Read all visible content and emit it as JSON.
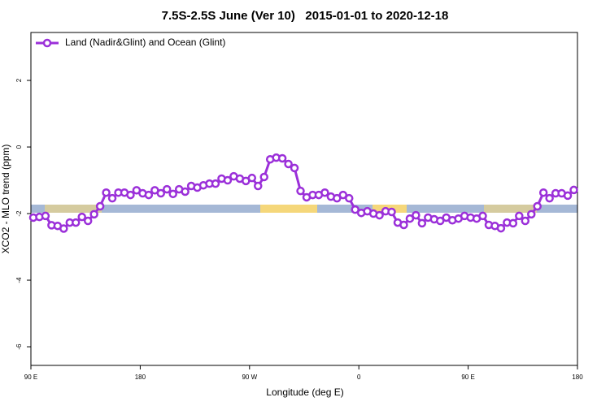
{
  "chart_data": {
    "type": "line",
    "title": "7.5S-2.5S June (Ver 10)   2015-01-01 to 2020-12-18",
    "xlabel": "Longitude (deg E)",
    "ylabel": "XCO2 - MLO trend (ppm)",
    "xlim": [
      90,
      540
    ],
    "ylim": [
      -6.56,
      3.44
    ],
    "xticks": [
      {
        "value": 90,
        "label": "90 E"
      },
      180,
      {
        "value": 270,
        "label": "90 W"
      },
      {
        "value": 360,
        "label": "0"
      },
      {
        "value": 450,
        "label": "90 E"
      },
      {
        "value": 540,
        "label": "180"
      }
    ],
    "yticks": [
      2,
      0,
      -2,
      -4,
      -6
    ],
    "legend": "top-left",
    "x": [
      92,
      97,
      102,
      107,
      112,
      117,
      122,
      127,
      132,
      137,
      142,
      147,
      152,
      157,
      162,
      167,
      172,
      177,
      182,
      187,
      192,
      197,
      202,
      207,
      212,
      217,
      222,
      227,
      232,
      237,
      242,
      247,
      252,
      257,
      262,
      267,
      272,
      277,
      282,
      287,
      292,
      297,
      302,
      307,
      312,
      317,
      322,
      327,
      332,
      337,
      342,
      347,
      352,
      357,
      362,
      367,
      372,
      377,
      382,
      387,
      392,
      397,
      402,
      407,
      412,
      417,
      422,
      427,
      432,
      437,
      442,
      447,
      452,
      457,
      462,
      467,
      472,
      477,
      482,
      487,
      492,
      497,
      502,
      507,
      512,
      517,
      522,
      527,
      532,
      537
    ],
    "series": [
      {
        "name": "Land (Nadir&Glint) and Ocean (Glint)",
        "color": "#9b30d9",
        "values": [
          -2.12,
          -2.1,
          -2.07,
          -2.35,
          -2.37,
          -2.45,
          -2.27,
          -2.27,
          -2.1,
          -2.22,
          -2.02,
          -1.78,
          -1.37,
          -1.54,
          -1.37,
          -1.37,
          -1.44,
          -1.3,
          -1.39,
          -1.44,
          -1.3,
          -1.39,
          -1.27,
          -1.41,
          -1.27,
          -1.34,
          -1.17,
          -1.22,
          -1.15,
          -1.1,
          -1.1,
          -0.95,
          -1.0,
          -0.88,
          -0.95,
          -1.02,
          -0.93,
          -1.17,
          -0.9,
          -0.37,
          -0.32,
          -0.34,
          -0.51,
          -0.63,
          -1.32,
          -1.51,
          -1.44,
          -1.44,
          -1.37,
          -1.49,
          -1.54,
          -1.44,
          -1.54,
          -1.88,
          -1.98,
          -1.93,
          -2.0,
          -2.05,
          -1.93,
          -1.95,
          -2.27,
          -2.34,
          -2.15,
          -2.05,
          -2.29,
          -2.12,
          -2.17,
          -2.22,
          -2.12,
          -2.2,
          -2.15,
          -2.07,
          -2.12,
          -2.15,
          -2.07,
          -2.34,
          -2.37,
          -2.44,
          -2.27,
          -2.29,
          -2.07,
          -2.22,
          -2.02,
          -1.78,
          -1.37,
          -1.54,
          -1.39,
          -1.39,
          -1.46,
          -1.29
        ]
      }
    ]
  }
}
